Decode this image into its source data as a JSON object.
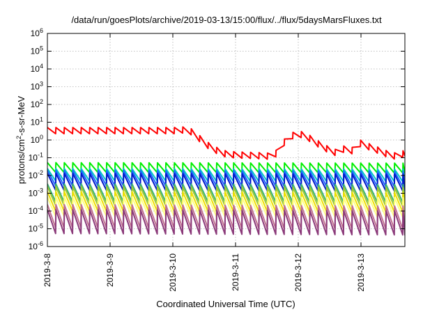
{
  "chart_data": {
    "type": "line",
    "title": "/data/run/goesPlots/archive/2019-03-13/15:00/flux/../flux/5daysMarsFluxes.txt",
    "xlabel": "Coordinated Universal Time (UTC)",
    "ylabel_base": "protons/cm",
    "ylabel_sup": "2",
    "ylabel_rest": "-s-sr-MeV",
    "y_scale": "log",
    "ylim_exp": [
      -6,
      6
    ],
    "y_tick_exponents": [
      "-6",
      "-5",
      "-4",
      "-3",
      "-2",
      "-1",
      "0",
      "1",
      "2",
      "3",
      "4",
      "5",
      "6"
    ],
    "y_tick_base": "10",
    "xlim_days": [
      0,
      5.7
    ],
    "x_ticks": [
      {
        "day": 0,
        "label": "2019-3-8"
      },
      {
        "day": 1,
        "label": "2019-3-9"
      },
      {
        "day": 2,
        "label": "2019-3-10"
      },
      {
        "day": 3,
        "label": "2019-3-11"
      },
      {
        "day": 4,
        "label": "2019-3-12"
      },
      {
        "day": 5,
        "label": "2019-3-13"
      }
    ],
    "grid": true,
    "sawtooth_period_days": 0.135,
    "series": [
      {
        "color": "#ff0000",
        "points": [
          [
            0,
            3.5
          ],
          [
            2.0,
            3.5
          ],
          [
            2.25,
            4.0
          ],
          [
            2.4,
            1.5
          ],
          [
            2.6,
            0.4
          ],
          [
            2.8,
            0.18
          ],
          [
            3.0,
            0.15
          ],
          [
            3.3,
            0.14
          ],
          [
            3.5,
            0.13
          ],
          [
            3.6,
            0.11
          ],
          [
            3.75,
            0.6
          ],
          [
            3.85,
            1.5
          ],
          [
            4.0,
            2.5
          ],
          [
            4.2,
            1.2
          ],
          [
            4.4,
            0.4
          ],
          [
            4.6,
            0.2
          ],
          [
            4.75,
            0.35
          ],
          [
            4.85,
            0.25
          ],
          [
            5.0,
            0.7
          ],
          [
            5.15,
            0.4
          ],
          [
            5.3,
            0.25
          ],
          [
            5.45,
            0.15
          ],
          [
            5.6,
            0.12
          ],
          [
            5.7,
            0.2
          ]
        ],
        "amp": 0.35
      },
      {
        "color": "#00ee00",
        "points": [
          [
            0,
            0.03
          ],
          [
            5.7,
            0.028
          ]
        ],
        "amp": 0.55
      },
      {
        "color": "#00c8c8",
        "points": [
          [
            0,
            0.012
          ],
          [
            5.7,
            0.011
          ]
        ],
        "amp": 0.7
      },
      {
        "color": "#1e64ff",
        "points": [
          [
            0,
            0.008
          ],
          [
            5.7,
            0.007
          ]
        ],
        "amp": 0.85
      },
      {
        "color": "#0018c8",
        "points": [
          [
            0,
            0.005
          ],
          [
            5.7,
            0.0045
          ]
        ],
        "amp": 0.95
      },
      {
        "color": "#3cb478",
        "points": [
          [
            0,
            0.0012
          ],
          [
            5.7,
            0.0011
          ]
        ],
        "amp": 1.0
      },
      {
        "color": "#a0c832",
        "points": [
          [
            0,
            0.0008
          ],
          [
            5.7,
            0.0007
          ]
        ],
        "amp": 1.05
      },
      {
        "color": "#f0e000",
        "points": [
          [
            0,
            0.0004
          ],
          [
            5.7,
            0.00035
          ]
        ],
        "amp": 1.1
      },
      {
        "color": "#ffff80",
        "points": [
          [
            0,
            0.0002
          ],
          [
            5.7,
            0.00018
          ]
        ],
        "amp": 1.1
      },
      {
        "color": "#c07090",
        "points": [
          [
            0,
            6e-05
          ],
          [
            5.7,
            5e-05
          ]
        ],
        "amp": 1.3
      },
      {
        "color": "#8b3a7a",
        "points": [
          [
            0,
            3e-05
          ],
          [
            5.7,
            2.5e-05
          ]
        ],
        "amp": 1.35
      }
    ]
  }
}
